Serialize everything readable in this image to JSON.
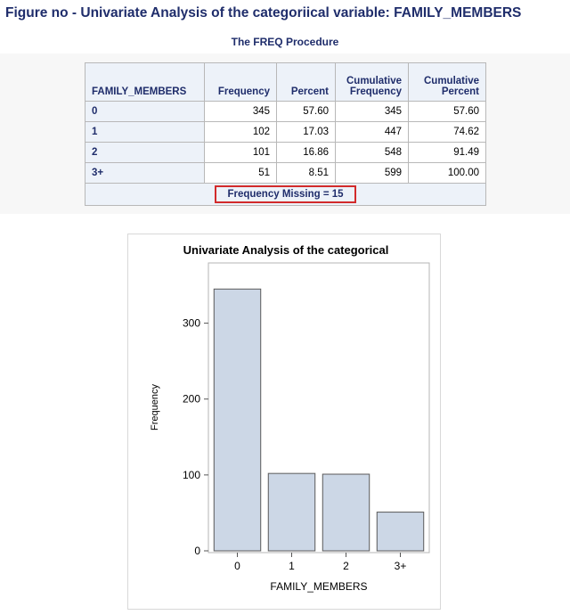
{
  "figure_title": "Figure no - Univariate Analysis of the categoriical variable: FAMILY_MEMBERS",
  "procedure_title": "The FREQ Procedure",
  "table": {
    "headers": {
      "var": "FAMILY_MEMBERS",
      "freq": "Frequency",
      "pct": "Percent",
      "cumfreq_1": "Cumulative",
      "cumfreq_2": "Frequency",
      "cumpct_1": "Cumulative",
      "cumpct_2": "Percent"
    },
    "rows": [
      {
        "level": "0",
        "freq": "345",
        "pct": "57.60",
        "cumfreq": "345",
        "cumpct": "57.60"
      },
      {
        "level": "1",
        "freq": "102",
        "pct": "17.03",
        "cumfreq": "447",
        "cumpct": "74.62"
      },
      {
        "level": "2",
        "freq": "101",
        "pct": "16.86",
        "cumfreq": "548",
        "cumpct": "91.49"
      },
      {
        "level": "3+",
        "freq": "51",
        "pct": "8.51",
        "cumfreq": "599",
        "cumpct": "100.00"
      }
    ],
    "missing_note": "Frequency Missing = 15"
  },
  "colors": {
    "title_navy": "#1f2d6b",
    "bar_fill": "#ccd7e6",
    "bar_stroke": "#5a5a5a",
    "highlight_red": "#d22b2b"
  },
  "chart_data": {
    "type": "bar",
    "title": "Univariate Analysis of the categorical",
    "xlabel": "FAMILY_MEMBERS",
    "ylabel": "Frequency",
    "categories": [
      "0",
      "1",
      "2",
      "3+"
    ],
    "values": [
      345,
      102,
      101,
      51
    ],
    "ylim": [
      0,
      370
    ],
    "yticks": [
      0,
      100,
      200,
      300
    ],
    "grid": false
  }
}
